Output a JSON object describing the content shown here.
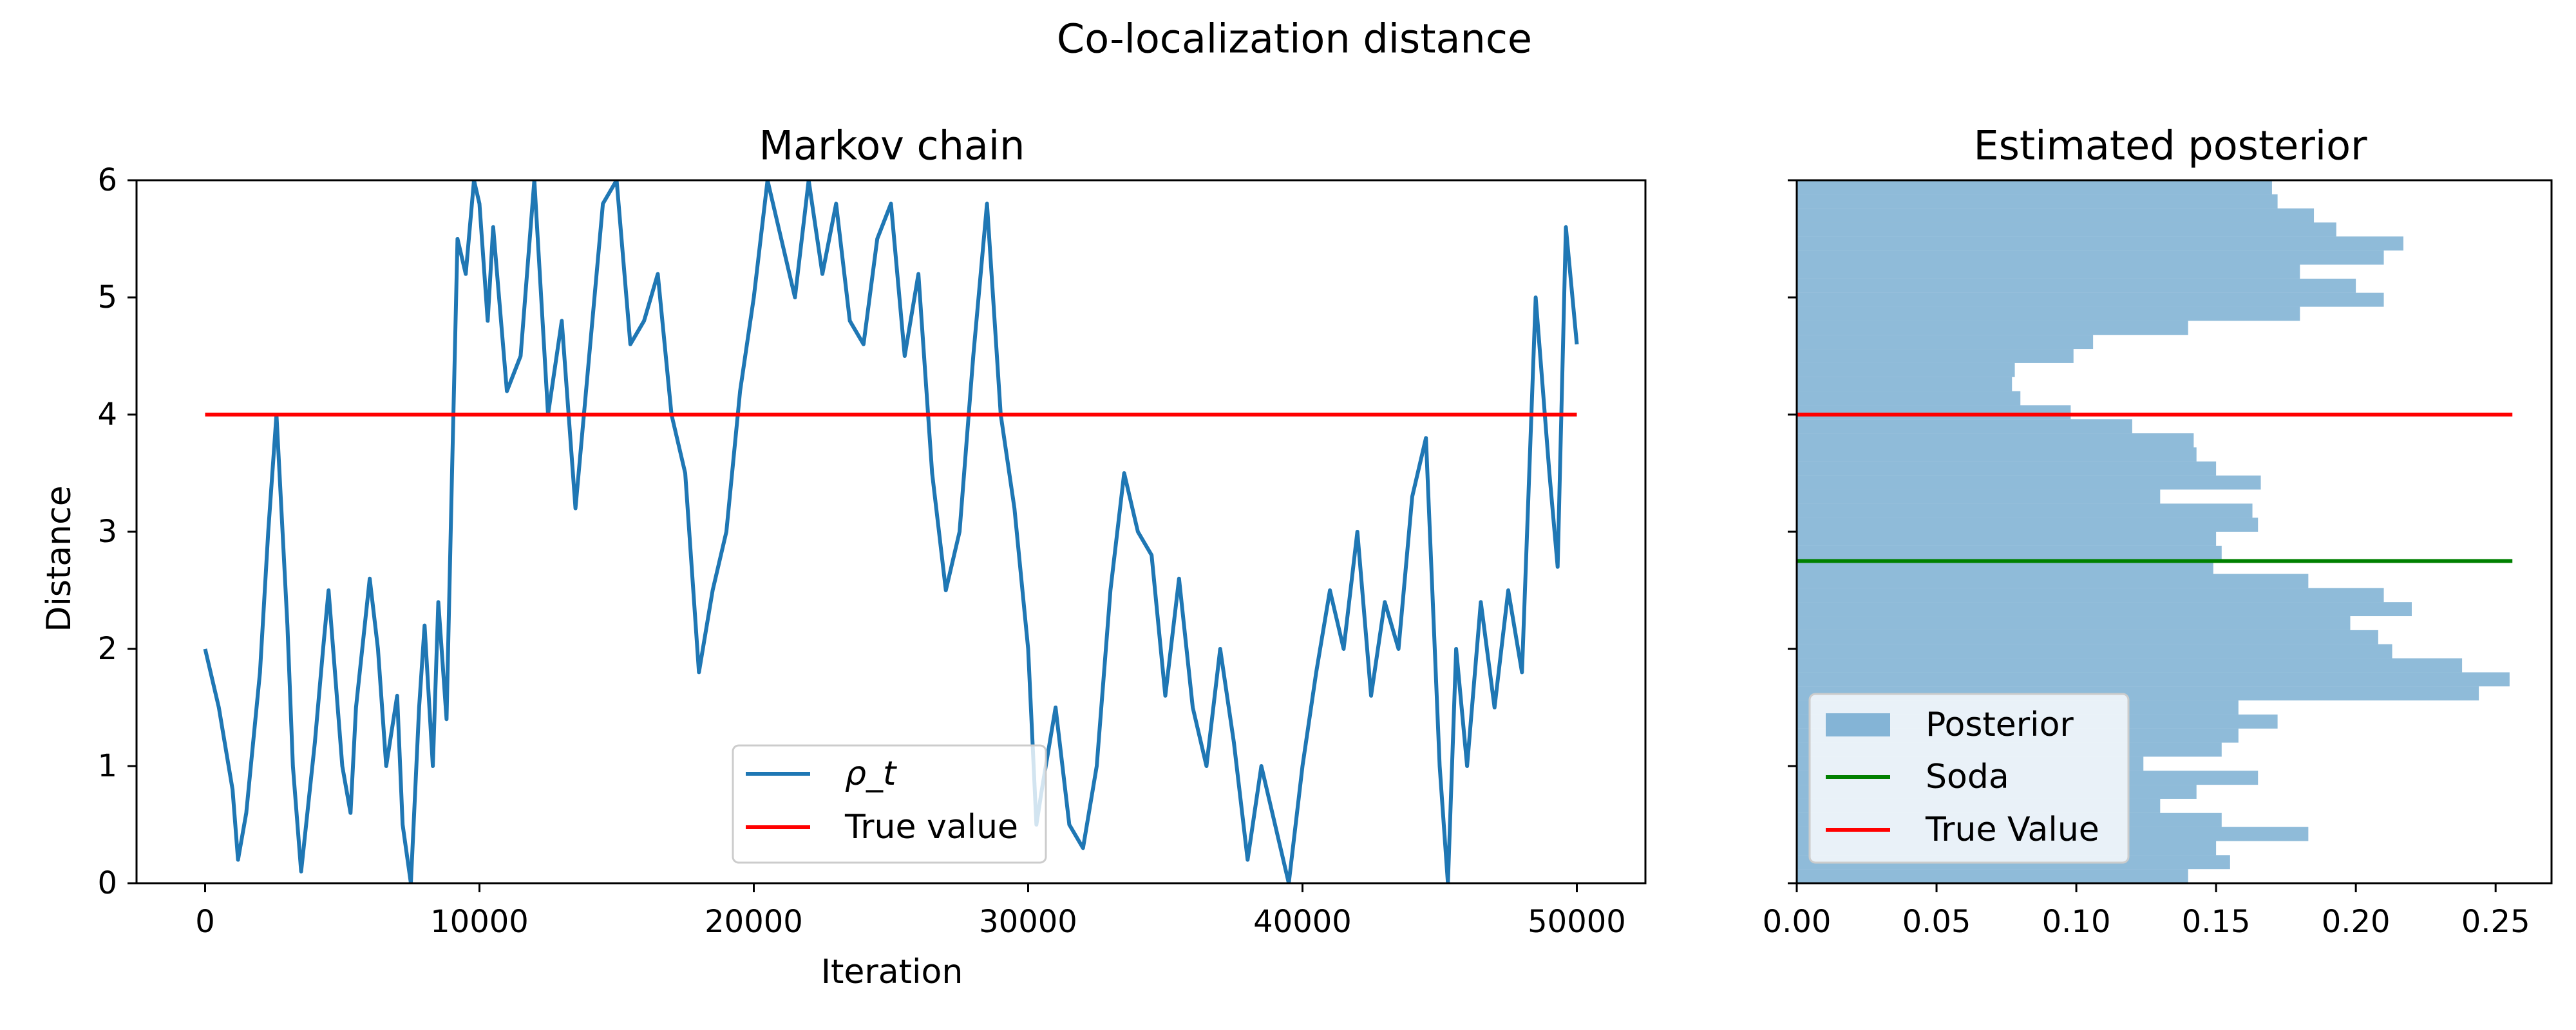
{
  "figure": {
    "suptitle": "Co-localization distance"
  },
  "colors": {
    "chain": "#1f77b4",
    "true_value": "#ff0000",
    "soda": "#008000",
    "posterior_fill": "#1f77b4",
    "posterior_alpha": 0.5,
    "legend_frame": "#cccccc"
  },
  "chart_data": [
    {
      "type": "line",
      "title": "Markov chain",
      "xlabel": "Iteration",
      "ylabel": "Distance",
      "xlim": [
        -2500,
        52500
      ],
      "ylim": [
        0,
        6
      ],
      "xticks": [
        0,
        10000,
        20000,
        30000,
        40000,
        50000
      ],
      "xtick_labels": [
        "0",
        "10000",
        "20000",
        "30000",
        "40000",
        "50000"
      ],
      "yticks": [
        0,
        1,
        2,
        3,
        4,
        5,
        6
      ],
      "ytick_labels": [
        "0",
        "1",
        "2",
        "3",
        "4",
        "5",
        "6"
      ],
      "grid": false,
      "legend_position": "lower-center",
      "legend": [
        "ρ_t",
        "True value"
      ],
      "series": [
        {
          "name": "ρ_t",
          "x": [
            0,
            500,
            1000,
            1200,
            1500,
            2000,
            2300,
            2600,
            3000,
            3200,
            3500,
            4000,
            4300,
            4500,
            5000,
            5300,
            5500,
            6000,
            6300,
            6600,
            7000,
            7200,
            7500,
            7800,
            8000,
            8300,
            8500,
            8800,
            9000,
            9200,
            9500,
            9800,
            10000,
            10300,
            10500,
            11000,
            11500,
            12000,
            12500,
            13000,
            13500,
            14000,
            14500,
            15000,
            15500,
            16000,
            16500,
            17000,
            17500,
            18000,
            18500,
            19000,
            19500,
            20000,
            20500,
            21000,
            21500,
            22000,
            22500,
            23000,
            23500,
            24000,
            24500,
            25000,
            25500,
            26000,
            26500,
            27000,
            27500,
            28000,
            28500,
            29000,
            29500,
            30000,
            30300,
            30500,
            31000,
            31500,
            32000,
            32500,
            33000,
            33500,
            34000,
            34500,
            35000,
            35500,
            36000,
            36500,
            37000,
            37500,
            38000,
            38500,
            39000,
            39500,
            40000,
            40500,
            41000,
            41500,
            42000,
            42500,
            43000,
            43500,
            44000,
            44500,
            45000,
            45300,
            45600,
            46000,
            46500,
            47000,
            47500,
            48000,
            48500,
            49000,
            49300,
            49600,
            50000
          ],
          "y": [
            2.0,
            1.5,
            0.8,
            0.2,
            0.6,
            1.8,
            3.0,
            4.0,
            2.2,
            1.0,
            0.1,
            1.2,
            2.0,
            2.5,
            1.0,
            0.6,
            1.5,
            2.6,
            2.0,
            1.0,
            1.6,
            0.5,
            0.0,
            1.5,
            2.2,
            1.0,
            2.4,
            1.4,
            3.5,
            5.5,
            5.2,
            6.0,
            5.8,
            4.8,
            5.6,
            4.2,
            4.5,
            6.0,
            4.0,
            4.8,
            3.2,
            4.5,
            5.8,
            6.0,
            4.6,
            4.8,
            5.2,
            4.0,
            3.5,
            1.8,
            2.5,
            3.0,
            4.2,
            5.0,
            6.0,
            5.5,
            5.0,
            6.0,
            5.2,
            5.8,
            4.8,
            4.6,
            5.5,
            5.8,
            4.5,
            5.2,
            3.5,
            2.5,
            3.0,
            4.5,
            5.8,
            4.0,
            3.2,
            2.0,
            0.5,
            0.8,
            1.5,
            0.5,
            0.3,
            1.0,
            2.5,
            3.5,
            3.0,
            2.8,
            1.6,
            2.6,
            1.5,
            1.0,
            2.0,
            1.2,
            0.2,
            1.0,
            0.5,
            0.0,
            1.0,
            1.8,
            2.5,
            2.0,
            3.0,
            1.6,
            2.4,
            2.0,
            3.3,
            3.8,
            1.0,
            0.0,
            2.0,
            1.0,
            2.4,
            1.5,
            2.5,
            1.8,
            5.0,
            3.5,
            2.7,
            5.6,
            4.6
          ]
        },
        {
          "name": "True value",
          "x": [
            0,
            50000
          ],
          "y": [
            4,
            4
          ]
        }
      ]
    },
    {
      "type": "bar",
      "orientation": "horizontal",
      "title": "Estimated posterior",
      "xlim": [
        0,
        0.27
      ],
      "ylim": [
        0,
        6
      ],
      "xticks": [
        0.0,
        0.05,
        0.1,
        0.15,
        0.2,
        0.25
      ],
      "xtick_labels": [
        "0.00",
        "0.05",
        "0.10",
        "0.15",
        "0.20",
        "0.25"
      ],
      "grid": false,
      "legend_position": "lower-left",
      "legend": [
        "Posterior",
        "Soda",
        "True Value"
      ],
      "bin_edges": [
        0.0,
        0.12,
        0.24,
        0.36,
        0.48,
        0.6,
        0.72,
        0.84,
        0.96,
        1.08,
        1.2,
        1.32,
        1.44,
        1.56,
        1.68,
        1.8,
        1.92,
        2.04,
        2.16,
        2.28,
        2.4,
        2.52,
        2.64,
        2.76,
        2.88,
        3.0,
        3.12,
        3.24,
        3.36,
        3.48,
        3.6,
        3.72,
        3.84,
        3.96,
        4.08,
        4.2,
        4.32,
        4.44,
        4.56,
        4.68,
        4.8,
        4.92,
        5.04,
        5.16,
        5.28,
        5.4,
        5.52,
        5.64,
        5.76,
        5.88,
        6.0
      ],
      "values": [
        0.14,
        0.155,
        0.15,
        0.183,
        0.152,
        0.13,
        0.143,
        0.165,
        0.124,
        0.152,
        0.158,
        0.172,
        0.158,
        0.244,
        0.255,
        0.238,
        0.213,
        0.208,
        0.198,
        0.22,
        0.21,
        0.183,
        0.149,
        0.152,
        0.15,
        0.165,
        0.163,
        0.13,
        0.166,
        0.15,
        0.143,
        0.142,
        0.12,
        0.098,
        0.08,
        0.077,
        0.078,
        0.099,
        0.106,
        0.14,
        0.18,
        0.21,
        0.2,
        0.18,
        0.21,
        0.217,
        0.193,
        0.185,
        0.172,
        0.17
      ],
      "series": [
        {
          "name": "Soda",
          "value": 2.75
        },
        {
          "name": "True Value",
          "value": 4.0
        }
      ]
    }
  ]
}
